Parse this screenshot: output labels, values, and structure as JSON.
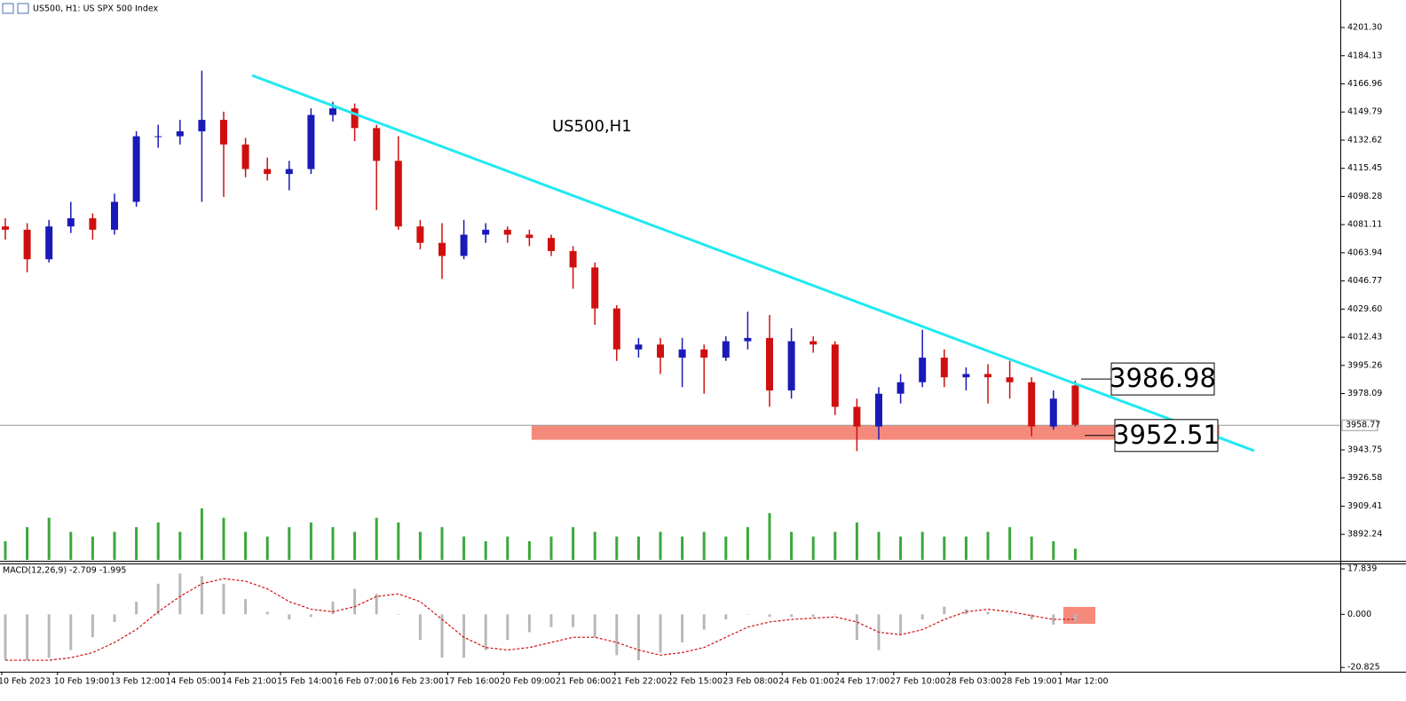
{
  "header": {
    "title": "US500, H1:  US SPX 500 Index"
  },
  "chart_data": [
    {
      "type": "candlestick",
      "label": "US500,H1",
      "up_color": "#1a1ab8",
      "down_color": "#d01010",
      "candles": [
        [
          4080,
          4085,
          4072,
          4078
        ],
        [
          4078,
          4082,
          4052,
          4060
        ],
        [
          4060,
          4084,
          4058,
          4080
        ],
        [
          4080,
          4095,
          4076,
          4085
        ],
        [
          4085,
          4088,
          4072,
          4078
        ],
        [
          4078,
          4100,
          4075,
          4095
        ],
        [
          4095,
          4138,
          4092,
          4135
        ],
        [
          4135,
          4142,
          4128,
          4135
        ],
        [
          4135,
          4145,
          4130,
          4138
        ],
        [
          4138,
          4175,
          4095,
          4145
        ],
        [
          4145,
          4150,
          4098,
          4130
        ],
        [
          4130,
          4134,
          4110,
          4115
        ],
        [
          4115,
          4122,
          4108,
          4112
        ],
        [
          4112,
          4120,
          4102,
          4115
        ],
        [
          4115,
          4152,
          4112,
          4148
        ],
        [
          4148,
          4156,
          4144,
          4152
        ],
        [
          4152,
          4155,
          4132,
          4140
        ],
        [
          4140,
          4142,
          4090,
          4120
        ],
        [
          4120,
          4135,
          4078,
          4080
        ],
        [
          4080,
          4084,
          4066,
          4070
        ],
        [
          4070,
          4082,
          4048,
          4062
        ],
        [
          4062,
          4084,
          4060,
          4075
        ],
        [
          4075,
          4082,
          4070,
          4078
        ],
        [
          4078,
          4080,
          4070,
          4075
        ],
        [
          4075,
          4078,
          4068,
          4073
        ],
        [
          4073,
          4075,
          4062,
          4065
        ],
        [
          4065,
          4068,
          4042,
          4055
        ],
        [
          4055,
          4058,
          4020,
          4030
        ],
        [
          4030,
          4032,
          3998,
          4005
        ],
        [
          4005,
          4012,
          4000,
          4008
        ],
        [
          4008,
          4012,
          3990,
          4000
        ],
        [
          4000,
          4012,
          3982,
          4005
        ],
        [
          4005,
          4008,
          3978,
          4000
        ],
        [
          4000,
          4013,
          3998,
          4010
        ],
        [
          4010,
          4028,
          4005,
          4012
        ],
        [
          4012,
          4026,
          3970,
          3980
        ],
        [
          3980,
          4018,
          3975,
          4010
        ],
        [
          4010,
          4013,
          4003,
          4008
        ],
        [
          4008,
          4010,
          3965,
          3970
        ],
        [
          3970,
          3975,
          3943,
          3958
        ],
        [
          3958,
          3982,
          3950,
          3978
        ],
        [
          3978,
          3990,
          3972,
          3985
        ],
        [
          3985,
          4017,
          3982,
          4000
        ],
        [
          4000,
          4005,
          3982,
          3988
        ],
        [
          3988,
          3994,
          3980,
          3990
        ],
        [
          3990,
          3996,
          3972,
          3988
        ],
        [
          3988,
          3998,
          3975,
          3985
        ],
        [
          3985,
          3988,
          3952,
          3958
        ],
        [
          3958,
          3980,
          3956,
          3975
        ],
        [
          3983,
          3986,
          3958,
          3959
        ]
      ],
      "volume_color": "#3aa83a",
      "volumes": [
        20,
        35,
        45,
        30,
        25,
        30,
        35,
        40,
        30,
        55,
        45,
        30,
        25,
        35,
        40,
        35,
        30,
        45,
        40,
        30,
        35,
        25,
        20,
        25,
        20,
        25,
        35,
        30,
        25,
        25,
        30,
        25,
        30,
        25,
        35,
        50,
        30,
        25,
        30,
        40,
        30,
        25,
        30,
        25,
        25,
        30,
        35,
        25,
        20,
        12
      ],
      "ylim": [
        3876.1,
        4218.1
      ],
      "yticks": [
        {
          "value": 4201.3,
          "label": "4201.30"
        },
        {
          "value": 4184.13,
          "label": "4184.13"
        },
        {
          "value": 4166.96,
          "label": "4166.96"
        },
        {
          "value": 4149.79,
          "label": "4149.79"
        },
        {
          "value": 4132.62,
          "label": "4132.62"
        },
        {
          "value": 4115.45,
          "label": "4115.45"
        },
        {
          "value": 4098.28,
          "label": "4098.28"
        },
        {
          "value": 4081.11,
          "label": "4081.11"
        },
        {
          "value": 4063.94,
          "label": "4063.94"
        },
        {
          "value": 4046.77,
          "label": "4046.77"
        },
        {
          "value": 4029.6,
          "label": "4029.60"
        },
        {
          "value": 4012.43,
          "label": "4012.43"
        },
        {
          "value": 3995.26,
          "label": "3995.26"
        },
        {
          "value": 3978.09,
          "label": "3978.09"
        },
        {
          "value": 3943.75,
          "label": "3943.75"
        },
        {
          "value": 3926.58,
          "label": "3926.58"
        },
        {
          "value": 3909.41,
          "label": "3909.41"
        },
        {
          "value": 3892.24,
          "label": "3892.24"
        }
      ],
      "current_price": 3958.77,
      "trendline": {
        "color": "#22e8f0",
        "x": [
          11.3,
          57.2
        ],
        "y": [
          4172.1,
          3943.2
        ]
      },
      "support_zone": {
        "color": "#f58a7c",
        "x": [
          24.1,
          55.6
        ],
        "y": [
          3949.9,
          3958.6
        ]
      },
      "levels": [
        3986.98,
        3952.51
      ],
      "time_labels": [
        "10 Feb 2023",
        "10 Feb 19:00",
        "13 Feb 12:00",
        "14 Feb 05:00",
        "14 Feb 21:00",
        "15 Feb 14:00",
        "16 Feb 07:00",
        "16 Feb 23:00",
        "17 Feb 16:00",
        "20 Feb 09:00",
        "21 Feb 06:00",
        "21 Feb 22:00",
        "22 Feb 15:00",
        "23 Feb 08:00",
        "24 Feb 01:00",
        "24 Feb 17:00",
        "27 Feb 10:00",
        "28 Feb 03:00",
        "28 Feb 19:00",
        "1 Mar 12:00"
      ]
    },
    {
      "type": "macd",
      "label": "MACD(12,26,9) -2.709 -1.995",
      "hist_color": "#b8b8b8",
      "signal_color": "#d01010",
      "histogram": [
        -18,
        -18,
        -17,
        -14,
        -9,
        -3,
        5,
        12,
        16,
        15,
        12,
        6,
        1,
        -2,
        -1,
        5,
        10,
        8,
        0,
        -10,
        -17,
        -17,
        -14,
        -10,
        -7,
        -5,
        -5,
        -9,
        -16,
        -18,
        -15,
        -11,
        -6,
        -2,
        0,
        -1,
        -1,
        -1,
        0,
        -10,
        -14,
        -8,
        -2,
        3,
        2,
        1,
        0,
        -2,
        -4,
        -2.709
      ],
      "signal": [
        -18,
        -18,
        -18,
        -17,
        -15,
        -11,
        -6,
        1,
        7,
        12,
        14,
        13,
        10,
        5,
        2,
        1,
        3,
        7,
        8,
        5,
        -2,
        -9,
        -13,
        -14,
        -13,
        -11,
        -9,
        -9,
        -11,
        -14,
        -16,
        -15,
        -13,
        -9,
        -5,
        -3,
        -2,
        -1.5,
        -1,
        -3,
        -7,
        -8,
        -6,
        -2,
        1,
        2,
        1,
        -0.5,
        -2,
        -1.995
      ],
      "ylim": [
        -22.5,
        19.6
      ],
      "yticks": [
        {
          "value": 17.839,
          "label": "17.839"
        },
        {
          "value": 0,
          "label": "0.000"
        },
        {
          "value": -20.825,
          "label": "-20.825"
        }
      ]
    }
  ]
}
